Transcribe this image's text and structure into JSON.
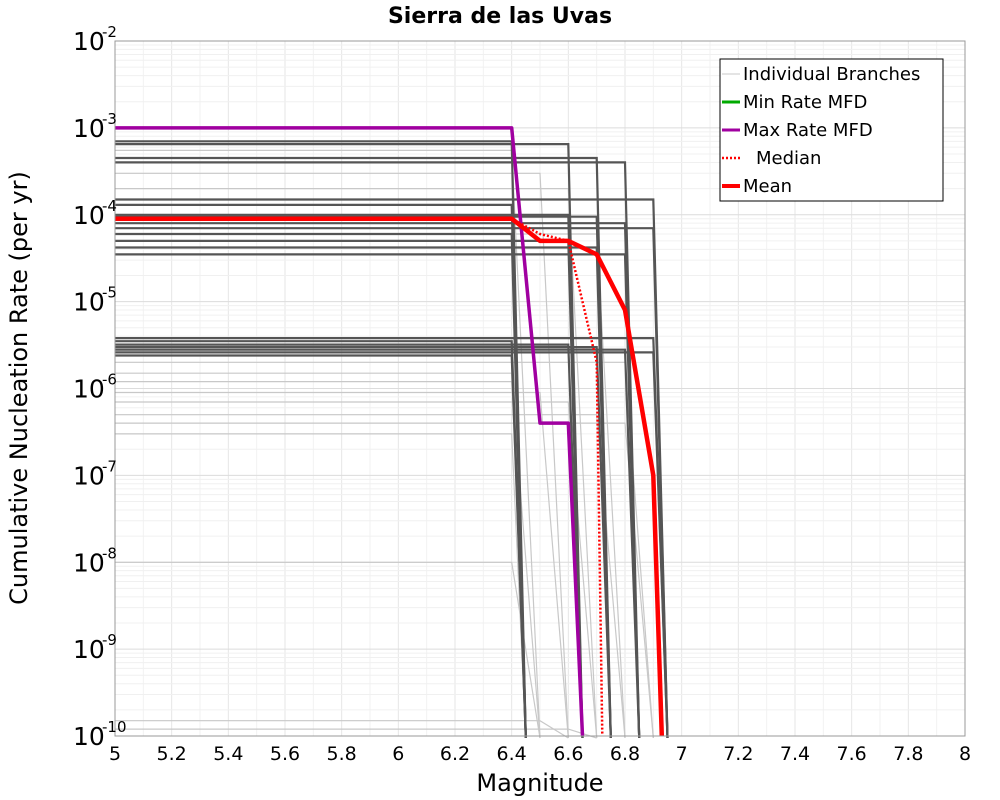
{
  "chart_data": {
    "type": "line",
    "title": "Sierra de las Uvas",
    "xlabel": "Magnitude",
    "ylabel": "Cumulative Nucleation Rate (per yr)",
    "xlim": [
      5,
      8
    ],
    "ylim": [
      1e-10,
      0.01
    ],
    "yscale": "log",
    "grid": true,
    "legend_position": "top-right",
    "x_ticks": [
      "5",
      "5.2",
      "5.4",
      "5.6",
      "5.8",
      "6",
      "6.2",
      "6.4",
      "6.6",
      "6.8",
      "7",
      "7.2",
      "7.4",
      "7.6",
      "7.8",
      "8"
    ],
    "y_ticks": [
      {
        "base": "10",
        "exp": "-2",
        "value": 0.01
      },
      {
        "base": "10",
        "exp": "-3",
        "value": 0.001
      },
      {
        "base": "10",
        "exp": "-4",
        "value": 0.0001
      },
      {
        "base": "10",
        "exp": "-5",
        "value": 1e-05
      },
      {
        "base": "10",
        "exp": "-6",
        "value": 1e-06
      },
      {
        "base": "10",
        "exp": "-7",
        "value": 1e-07
      },
      {
        "base": "10",
        "exp": "-8",
        "value": 1e-08
      },
      {
        "base": "10",
        "exp": "-9",
        "value": 1e-09
      },
      {
        "base": "10",
        "exp": "-10",
        "value": 1e-10
      }
    ],
    "legend": [
      {
        "label": "Individual Branches",
        "color": "#c8c8c8",
        "style": "thin"
      },
      {
        "label": "Min Rate MFD",
        "color": "#00aa00",
        "style": "solid"
      },
      {
        "label": "Max Rate MFD",
        "color": "#a000a0",
        "style": "solid"
      },
      {
        "label": "Median",
        "color": "#ff0000",
        "style": "dotted"
      },
      {
        "label": "Mean",
        "color": "#ff0000",
        "style": "thick"
      }
    ],
    "series": [
      {
        "name": "Max Rate MFD",
        "color": "#a000a0",
        "points": [
          [
            5.0,
            0.001
          ],
          [
            6.4,
            0.001
          ],
          [
            6.5,
            4e-07
          ],
          [
            6.6,
            4e-07
          ],
          [
            6.65,
            1e-10
          ]
        ]
      },
      {
        "name": "Median",
        "color": "#ff0000",
        "points": [
          [
            5.0,
            9e-05
          ],
          [
            6.4,
            9e-05
          ],
          [
            6.5,
            6e-05
          ],
          [
            6.6,
            5e-05
          ],
          [
            6.7,
            2e-06
          ],
          [
            6.72,
            1e-10
          ]
        ]
      },
      {
        "name": "Mean",
        "color": "#ff0000",
        "points": [
          [
            5.0,
            9e-05
          ],
          [
            6.4,
            9e-05
          ],
          [
            6.5,
            5e-05
          ],
          [
            6.6,
            5e-05
          ],
          [
            6.7,
            3.5e-05
          ],
          [
            6.8,
            8e-06
          ],
          [
            6.9,
            1e-07
          ],
          [
            6.93,
            1e-10
          ]
        ]
      },
      {
        "name": "Individual Branches (dark)",
        "color": "#555555",
        "rates": [
          0.0007,
          0.00065,
          0.00045,
          0.0004,
          0.00015,
          0.00013,
          0.0001,
          9.5e-05,
          8e-05,
          7e-05,
          6e-05,
          5e-05,
          4.2e-05,
          3.5e-05,
          3.8e-06,
          3.5e-06,
          3.2e-06,
          3e-06,
          2.8e-06,
          2.6e-06,
          2.4e-06
        ],
        "drop_points": [
          [
            6.4,
            6.45
          ],
          [
            6.6,
            6.65
          ],
          [
            6.7,
            6.75
          ],
          [
            6.8,
            6.85
          ],
          [
            6.9,
            6.95
          ]
        ]
      },
      {
        "name": "Individual Branches (light)",
        "color": "#c8c8c8",
        "rates": [
          0.00055,
          0.0003,
          0.0002,
          6e-05,
          2e-06,
          1.5e-06,
          1.2e-06,
          9e-07,
          7e-07,
          5e-07,
          4e-07,
          3e-07,
          1e-08,
          1.5e-10,
          1.2e-10
        ]
      }
    ]
  }
}
